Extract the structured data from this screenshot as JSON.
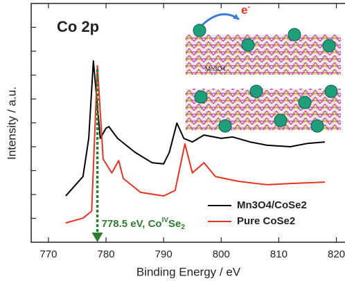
{
  "chart_data": {
    "type": "line",
    "panel_label": "Co 2p",
    "x_label": "Binding Energy / eV",
    "y_label": "Intensity / a.u.",
    "xlim": [
      767,
      821.5
    ],
    "xticks": [
      770,
      780,
      790,
      800,
      810,
      820
    ],
    "ylim": [
      0,
      100
    ],
    "yticks": [
      10,
      20,
      30,
      40,
      50,
      60,
      70,
      80,
      90
    ],
    "series": [
      {
        "name": "Mn3O4/CoSe2",
        "color": "#000000",
        "x": [
          773,
          776,
          777,
          777.8,
          779,
          780,
          780.5,
          782,
          785,
          788,
          790,
          791,
          792.3,
          793.5,
          795,
          797,
          800,
          802,
          805,
          808,
          812,
          815,
          818
        ],
        "values": [
          19.4,
          27.5,
          43.5,
          75.9,
          43.5,
          47.8,
          48.4,
          43.5,
          37.7,
          33.3,
          32.8,
          37.7,
          49.9,
          43.5,
          42.0,
          44.9,
          43.5,
          44.1,
          42.0,
          40.6,
          40.0,
          41.4,
          42.0
        ]
      },
      {
        "name": "Pure CoSe2",
        "color": "#e8321e",
        "x": [
          773,
          776,
          777.5,
          778.5,
          779.5,
          781,
          782.2,
          783,
          786,
          790,
          792,
          793.7,
          795,
          797,
          799,
          803,
          808,
          812,
          818
        ],
        "values": [
          8.1,
          10.1,
          13.0,
          73.9,
          34.8,
          29.0,
          34.2,
          26.7,
          20.9,
          19.4,
          21.7,
          41.2,
          29.0,
          33.3,
          27.5,
          25.5,
          24.1,
          24.6,
          25.2
        ]
      }
    ],
    "marker_line": {
      "x": 778.5,
      "color": "#2e7d32",
      "label": [
        "778.5 eV, Co",
        "IV",
        "Se",
        "2"
      ]
    },
    "inset": {
      "electron": "e",
      "electron_sup": "-",
      "layer_label": "Mn3O4"
    }
  }
}
